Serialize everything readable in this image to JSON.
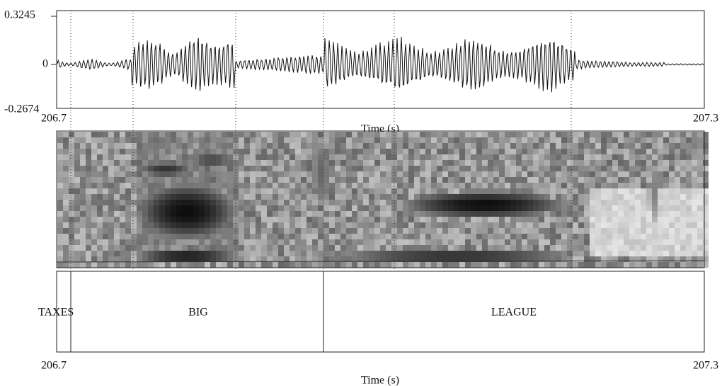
{
  "waveform": {
    "y_max_label": "0.3245",
    "y_zero_label": "0",
    "y_min_label": "-0.2674",
    "x_start": "206.7",
    "x_end": "207.3",
    "x_axis_label": "Time (s)"
  },
  "textgrid": {
    "intervals": [
      {
        "label": "TAXES"
      },
      {
        "label": "BIG"
      },
      {
        "label": "LEAGUE"
      }
    ],
    "x_start": "206.7",
    "x_end": "207.3",
    "x_axis_label": "Time (s)"
  }
}
